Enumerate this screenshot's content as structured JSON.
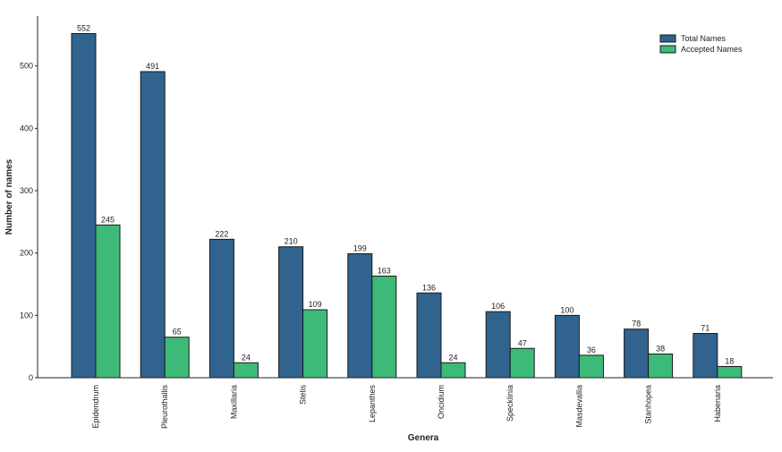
{
  "chart_data": {
    "type": "bar",
    "title": "",
    "xlabel": "Genera",
    "ylabel": "Number of names",
    "ylim": [
      0,
      580
    ],
    "yticks": [
      0,
      100,
      200,
      300,
      400,
      500
    ],
    "categories": [
      "Epidendrum",
      "Pleurothallis",
      "Maxillaria",
      "Stelis",
      "Lepanthes",
      "Oncidium",
      "Specklinia",
      "Masdevallia",
      "Stanhopea",
      "Habenaria"
    ],
    "series": [
      {
        "name": "Total Names",
        "color": "#30638e",
        "values": [
          552,
          491,
          222,
          210,
          199,
          136,
          106,
          100,
          78,
          71
        ]
      },
      {
        "name": "Accepted Names",
        "color": "#3dba78",
        "values": [
          245,
          65,
          24,
          109,
          163,
          24,
          47,
          36,
          38,
          18
        ]
      }
    ],
    "legend_position": "top-right",
    "grid": false
  }
}
